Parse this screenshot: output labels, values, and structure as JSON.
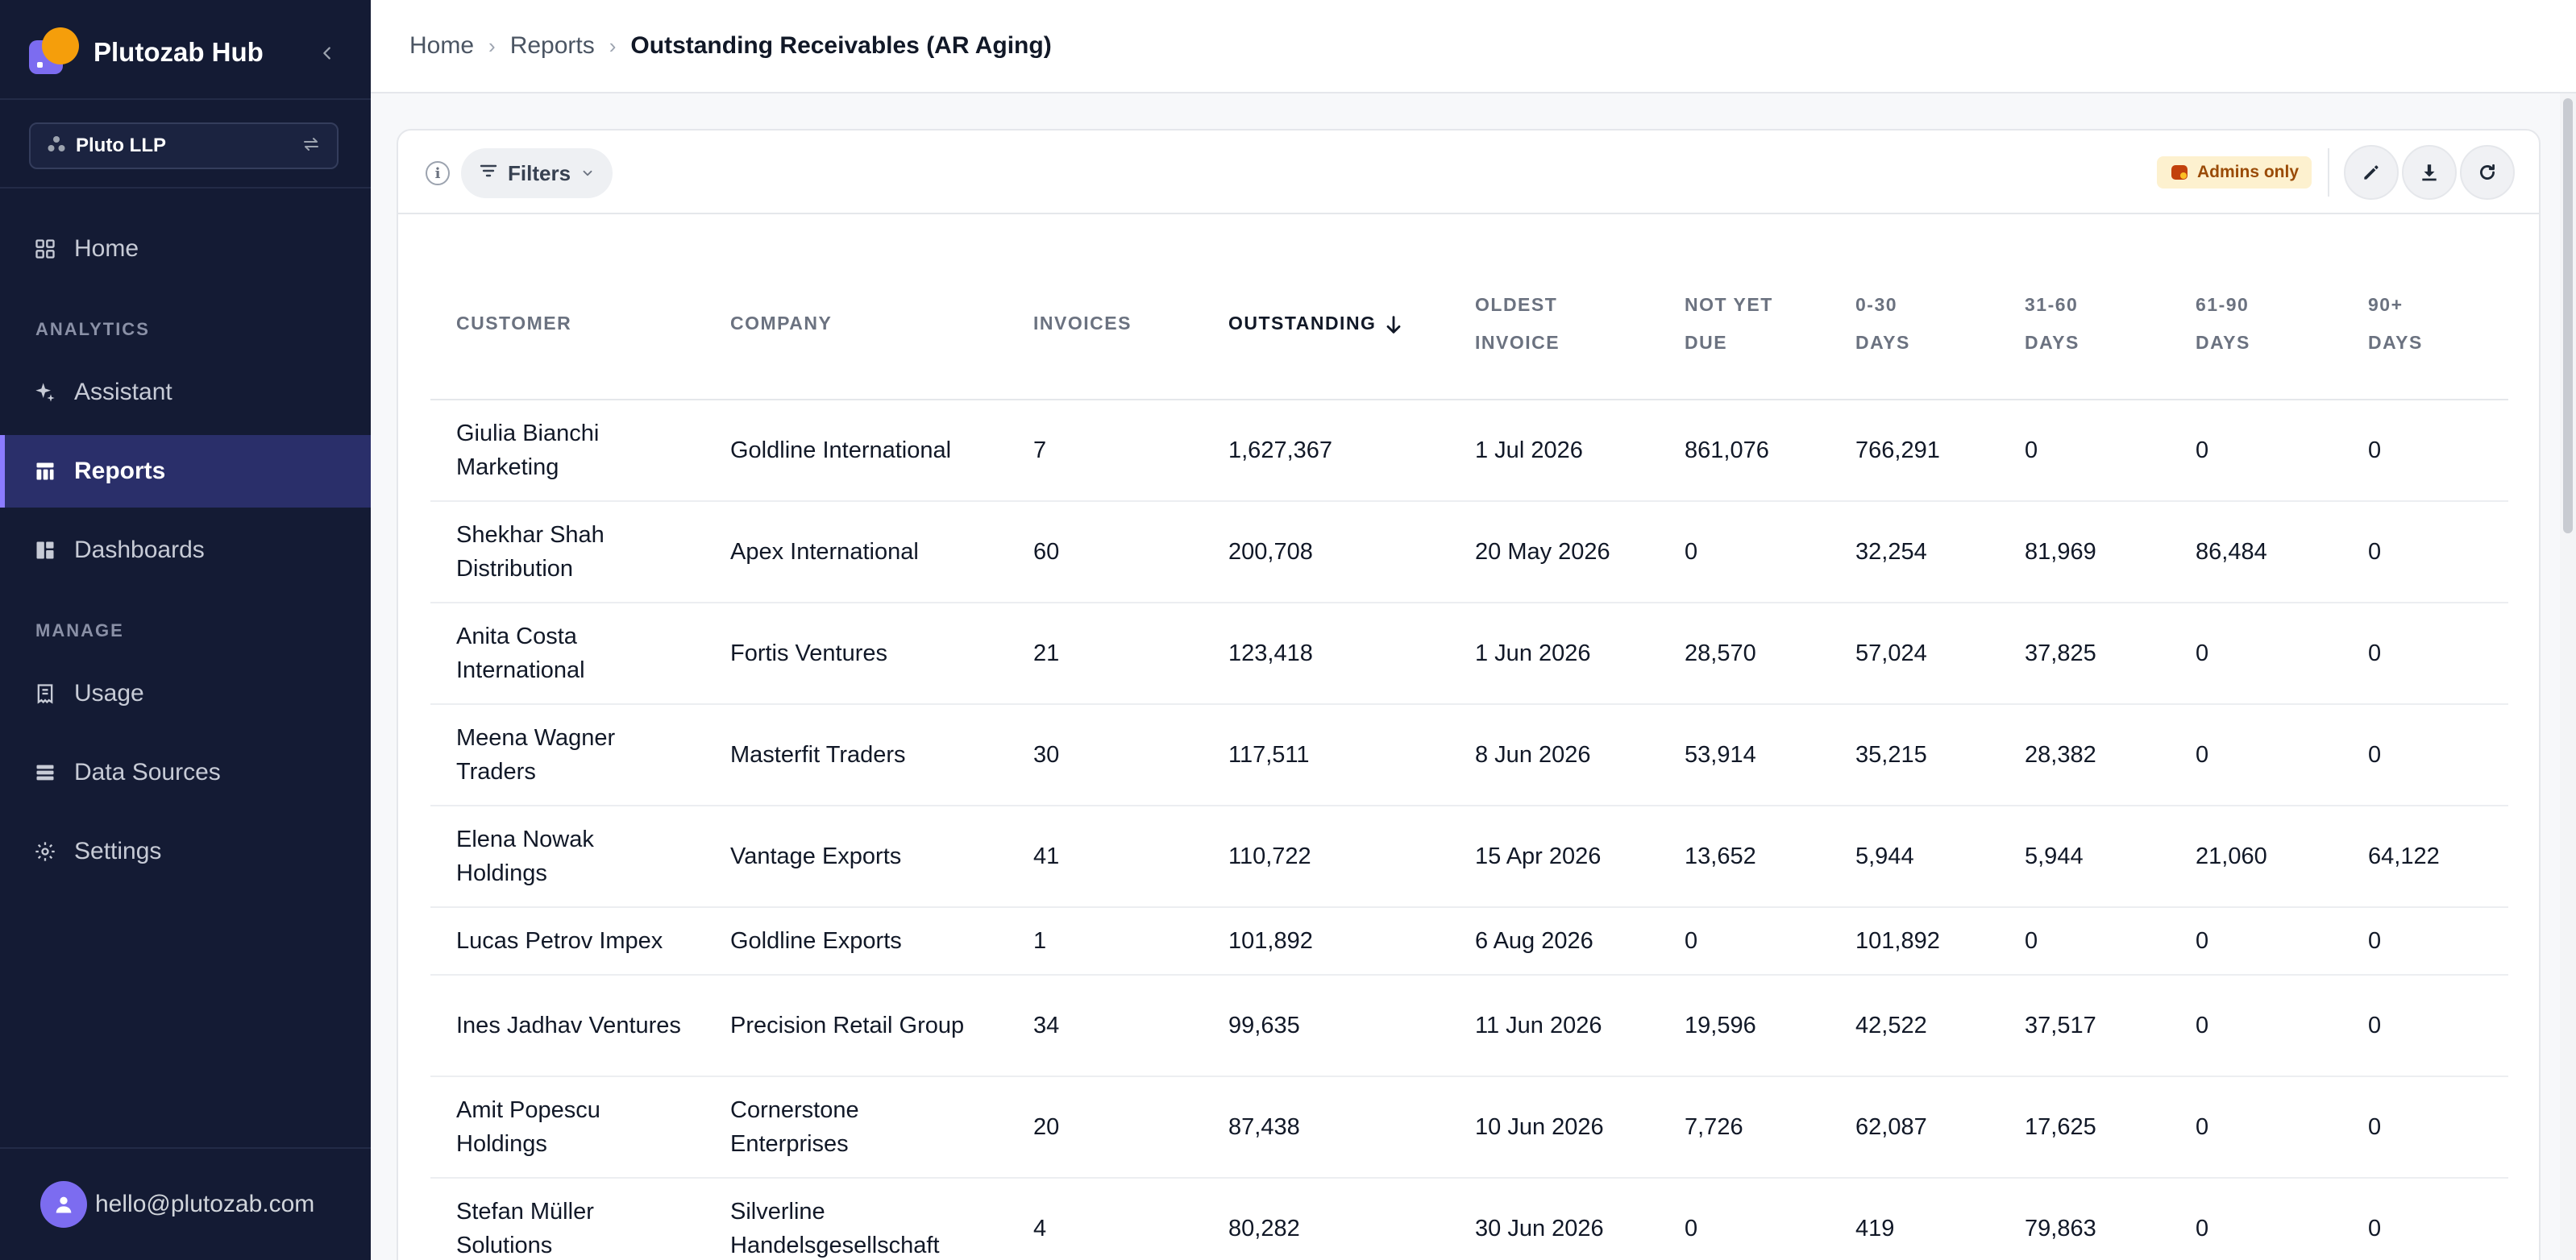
{
  "sidebar": {
    "brand": "Plutozab Hub",
    "org": "Pluto LLP",
    "sections": {
      "analytics": "ANALYTICS",
      "manage": "MANAGE"
    },
    "items": [
      {
        "label": "Home",
        "icon": "grid-icon"
      },
      {
        "label": "Assistant",
        "icon": "sparkles-icon"
      },
      {
        "label": "Reports",
        "icon": "table-icon",
        "active": true
      },
      {
        "label": "Dashboards",
        "icon": "dashboard-icon"
      },
      {
        "label": "Usage",
        "icon": "receipt-icon"
      },
      {
        "label": "Data Sources",
        "icon": "list-icon"
      },
      {
        "label": "Settings",
        "icon": "gear-icon"
      }
    ],
    "user_email": "hello@plutozab.com"
  },
  "breadcrumb": [
    "Home",
    "Reports",
    "Outstanding Receivables (AR Aging)"
  ],
  "toolbar": {
    "filters_label": "Filters",
    "admins_badge": "Admins only",
    "actions": [
      "edit-icon",
      "download-icon",
      "refresh-icon"
    ]
  },
  "colors": {
    "sidebar_bg": "#141b34",
    "active_item": "#2a2f6a",
    "accent": "#7c6cf0",
    "logo_sun": "#f59e0b",
    "badge_bg": "#fdf1cf",
    "badge_text": "#9a4b07"
  },
  "table": {
    "columns": [
      "CUSTOMER",
      "COMPANY",
      "INVOICES",
      "OUTSTANDING",
      "OLDEST INVOICE",
      "NOT YET DUE",
      "0-30 DAYS",
      "31-60 DAYS",
      "61-90 DAYS",
      "90+ DAYS"
    ],
    "sorted_column": "OUTSTANDING",
    "sort_direction": "descending",
    "rows": [
      [
        "Giulia Bianchi Marketing",
        "Goldline International",
        "7",
        "1,627,367",
        "1 Jul 2026",
        "861,076",
        "766,291",
        "0",
        "0",
        "0"
      ],
      [
        "Shekhar Shah Distribution",
        "Apex International",
        "60",
        "200,708",
        "20 May 2026",
        "0",
        "32,254",
        "81,969",
        "86,484",
        "0"
      ],
      [
        "Anita Costa International",
        "Fortis Ventures",
        "21",
        "123,418",
        "1 Jun 2026",
        "28,570",
        "57,024",
        "37,825",
        "0",
        "0"
      ],
      [
        "Meena Wagner Traders",
        "Masterfit Traders",
        "30",
        "117,511",
        "8 Jun 2026",
        "53,914",
        "35,215",
        "28,382",
        "0",
        "0"
      ],
      [
        "Elena Nowak Holdings",
        "Vantage Exports",
        "41",
        "110,722",
        "15 Apr 2026",
        "13,652",
        "5,944",
        "5,944",
        "21,060",
        "64,122"
      ],
      [
        "Lucas Petrov Impex",
        "Goldline Exports",
        "1",
        "101,892",
        "6 Aug 2026",
        "0",
        "101,892",
        "0",
        "0",
        "0"
      ],
      [
        "Ines Jadhav Ventures",
        "Precision Retail Group",
        "34",
        "99,635",
        "11 Jun 2026",
        "19,596",
        "42,522",
        "37,517",
        "0",
        "0"
      ],
      [
        "Amit Popescu Holdings",
        "Cornerstone Enterprises",
        "20",
        "87,438",
        "10 Jun 2026",
        "7,726",
        "62,087",
        "17,625",
        "0",
        "0"
      ],
      [
        "Stefan Müller Solutions",
        "Silverline Handelsgesellschaft",
        "4",
        "80,282",
        "30 Jun 2026",
        "0",
        "419",
        "79,863",
        "0",
        "0"
      ]
    ]
  }
}
